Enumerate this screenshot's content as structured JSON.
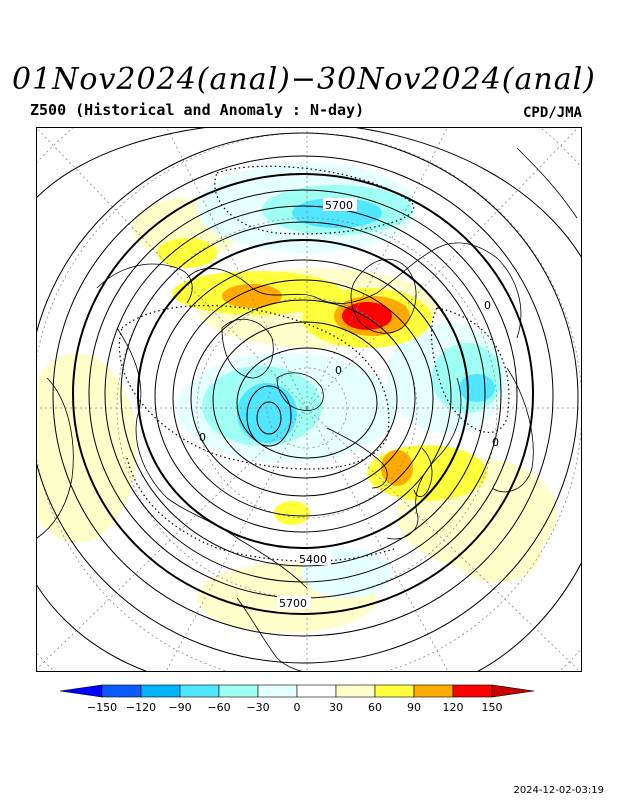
{
  "header": {
    "title": "01Nov2024(anal)−30Nov2024(anal)",
    "subtitle": "Z500 (Historical and Anomaly : N-day)",
    "source": "CPD/JMA"
  },
  "map": {
    "projection": "north-polar-stereographic",
    "contour_labels": [
      "5700",
      "0",
      "0",
      "0",
      "5400",
      "5700",
      "0"
    ],
    "anomaly_centers": [
      {
        "region": "northern Europe / Scandinavia",
        "sign": "positive",
        "level": 150
      },
      {
        "region": "East Asia / Japan",
        "sign": "positive",
        "level": 90
      },
      {
        "region": "western North America",
        "sign": "positive",
        "level": 90
      },
      {
        "region": "North Pacific / Bering",
        "sign": "negative",
        "level": -60
      },
      {
        "region": "Arctic / Canadian Archipelago",
        "sign": "negative",
        "level": -60
      },
      {
        "region": "Western Siberia",
        "sign": "negative",
        "level": -60
      }
    ]
  },
  "colorbar": {
    "ticks": [
      "−150",
      "−120",
      "−90",
      "−60",
      "−30",
      "0",
      "30",
      "60",
      "90",
      "120",
      "150"
    ],
    "colors": [
      "#0000ff",
      "#0a5cff",
      "#00b4ff",
      "#50e6ff",
      "#a0fff5",
      "#e6ffff",
      "#ffffff",
      "#ffffcc",
      "#ffff3c",
      "#ffaa00",
      "#ff0000",
      "#c80000"
    ]
  },
  "footer": {
    "timestamp": "2024-12-02-03:19"
  }
}
